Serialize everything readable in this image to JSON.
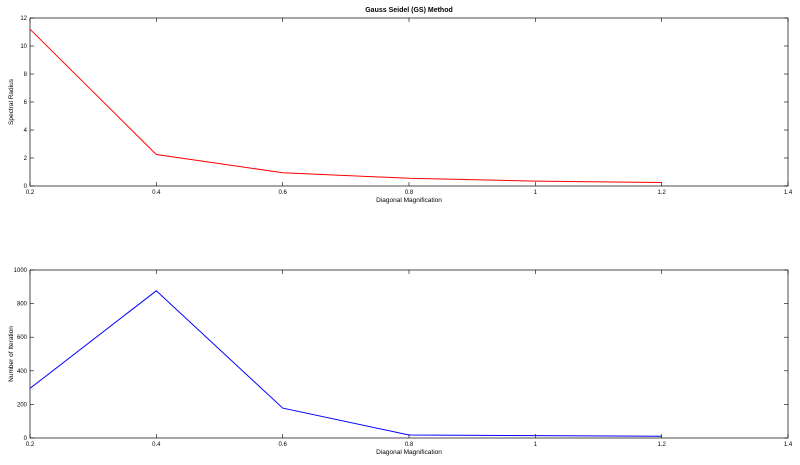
{
  "chart_data": [
    {
      "type": "line",
      "title": "Gauss Seidel (GS) Method",
      "xlabel": "Diagonal Magnification",
      "ylabel": "Spectral Radius",
      "xlim": [
        0.2,
        1.4
      ],
      "ylim": [
        0,
        12
      ],
      "xticks": [
        "0.2",
        "0.4",
        "0.6",
        "0.8",
        "1",
        "1.2",
        "1.4"
      ],
      "yticks": [
        "0",
        "2",
        "4",
        "6",
        "8",
        "10",
        "12"
      ],
      "grid": false,
      "series": [
        {
          "color": "#ff0000",
          "x": [
            0.2,
            0.4,
            0.6,
            0.8,
            1.0,
            1.2
          ],
          "y": [
            11.2,
            2.25,
            0.95,
            0.55,
            0.35,
            0.25
          ]
        }
      ]
    },
    {
      "type": "line",
      "title": "",
      "xlabel": "Diagonal Magnification",
      "ylabel": "Number of Iteration",
      "xlim": [
        0.2,
        1.4
      ],
      "ylim": [
        0,
        1000
      ],
      "xticks": [
        "0.2",
        "0.4",
        "0.6",
        "0.8",
        "1",
        "1.2",
        "1.4"
      ],
      "yticks": [
        "0",
        "200",
        "400",
        "600",
        "800",
        "1000"
      ],
      "grid": false,
      "series": [
        {
          "color": "#0000ff",
          "x": [
            0.2,
            0.4,
            0.6,
            0.8,
            1.0,
            1.2
          ],
          "y": [
            295,
            876,
            178,
            18,
            14,
            10
          ]
        }
      ]
    }
  ]
}
